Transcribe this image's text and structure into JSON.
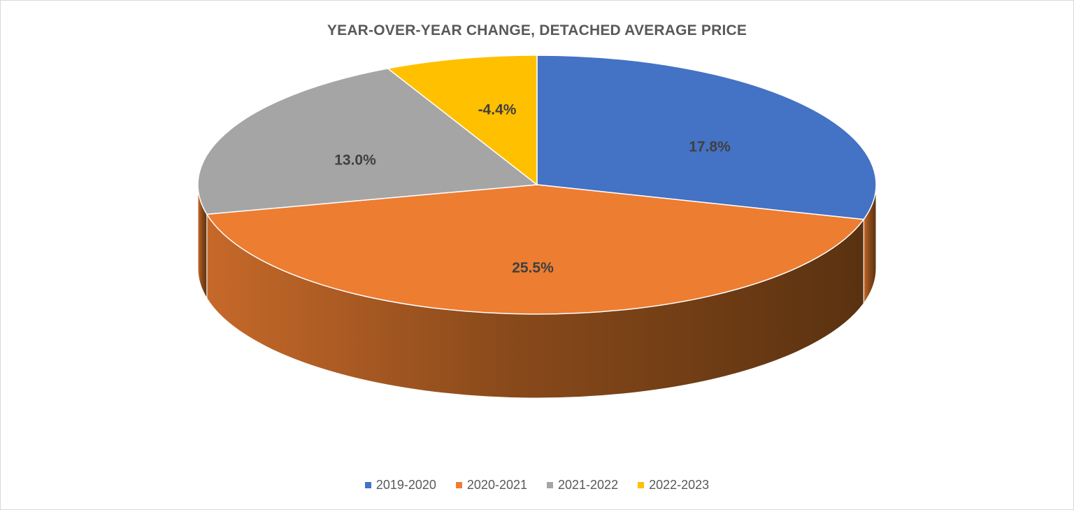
{
  "chart_data": {
    "type": "pie",
    "title": "YEAR-OVER-YEAR CHANGE, DETACHED AVERAGE PRICE",
    "categories": [
      "2019-2020",
      "2020-2021",
      "2021-2022",
      "2022-2023"
    ],
    "values": [
      17.8,
      25.5,
      13.0,
      -4.4
    ],
    "data_labels": [
      "17.8%",
      "25.5%",
      "13.0%",
      "-4.4%"
    ],
    "colors": [
      "#4472c4",
      "#ed7d31",
      "#a5a5a5",
      "#ffc000"
    ],
    "legend_position": "bottom",
    "style": "3d"
  }
}
